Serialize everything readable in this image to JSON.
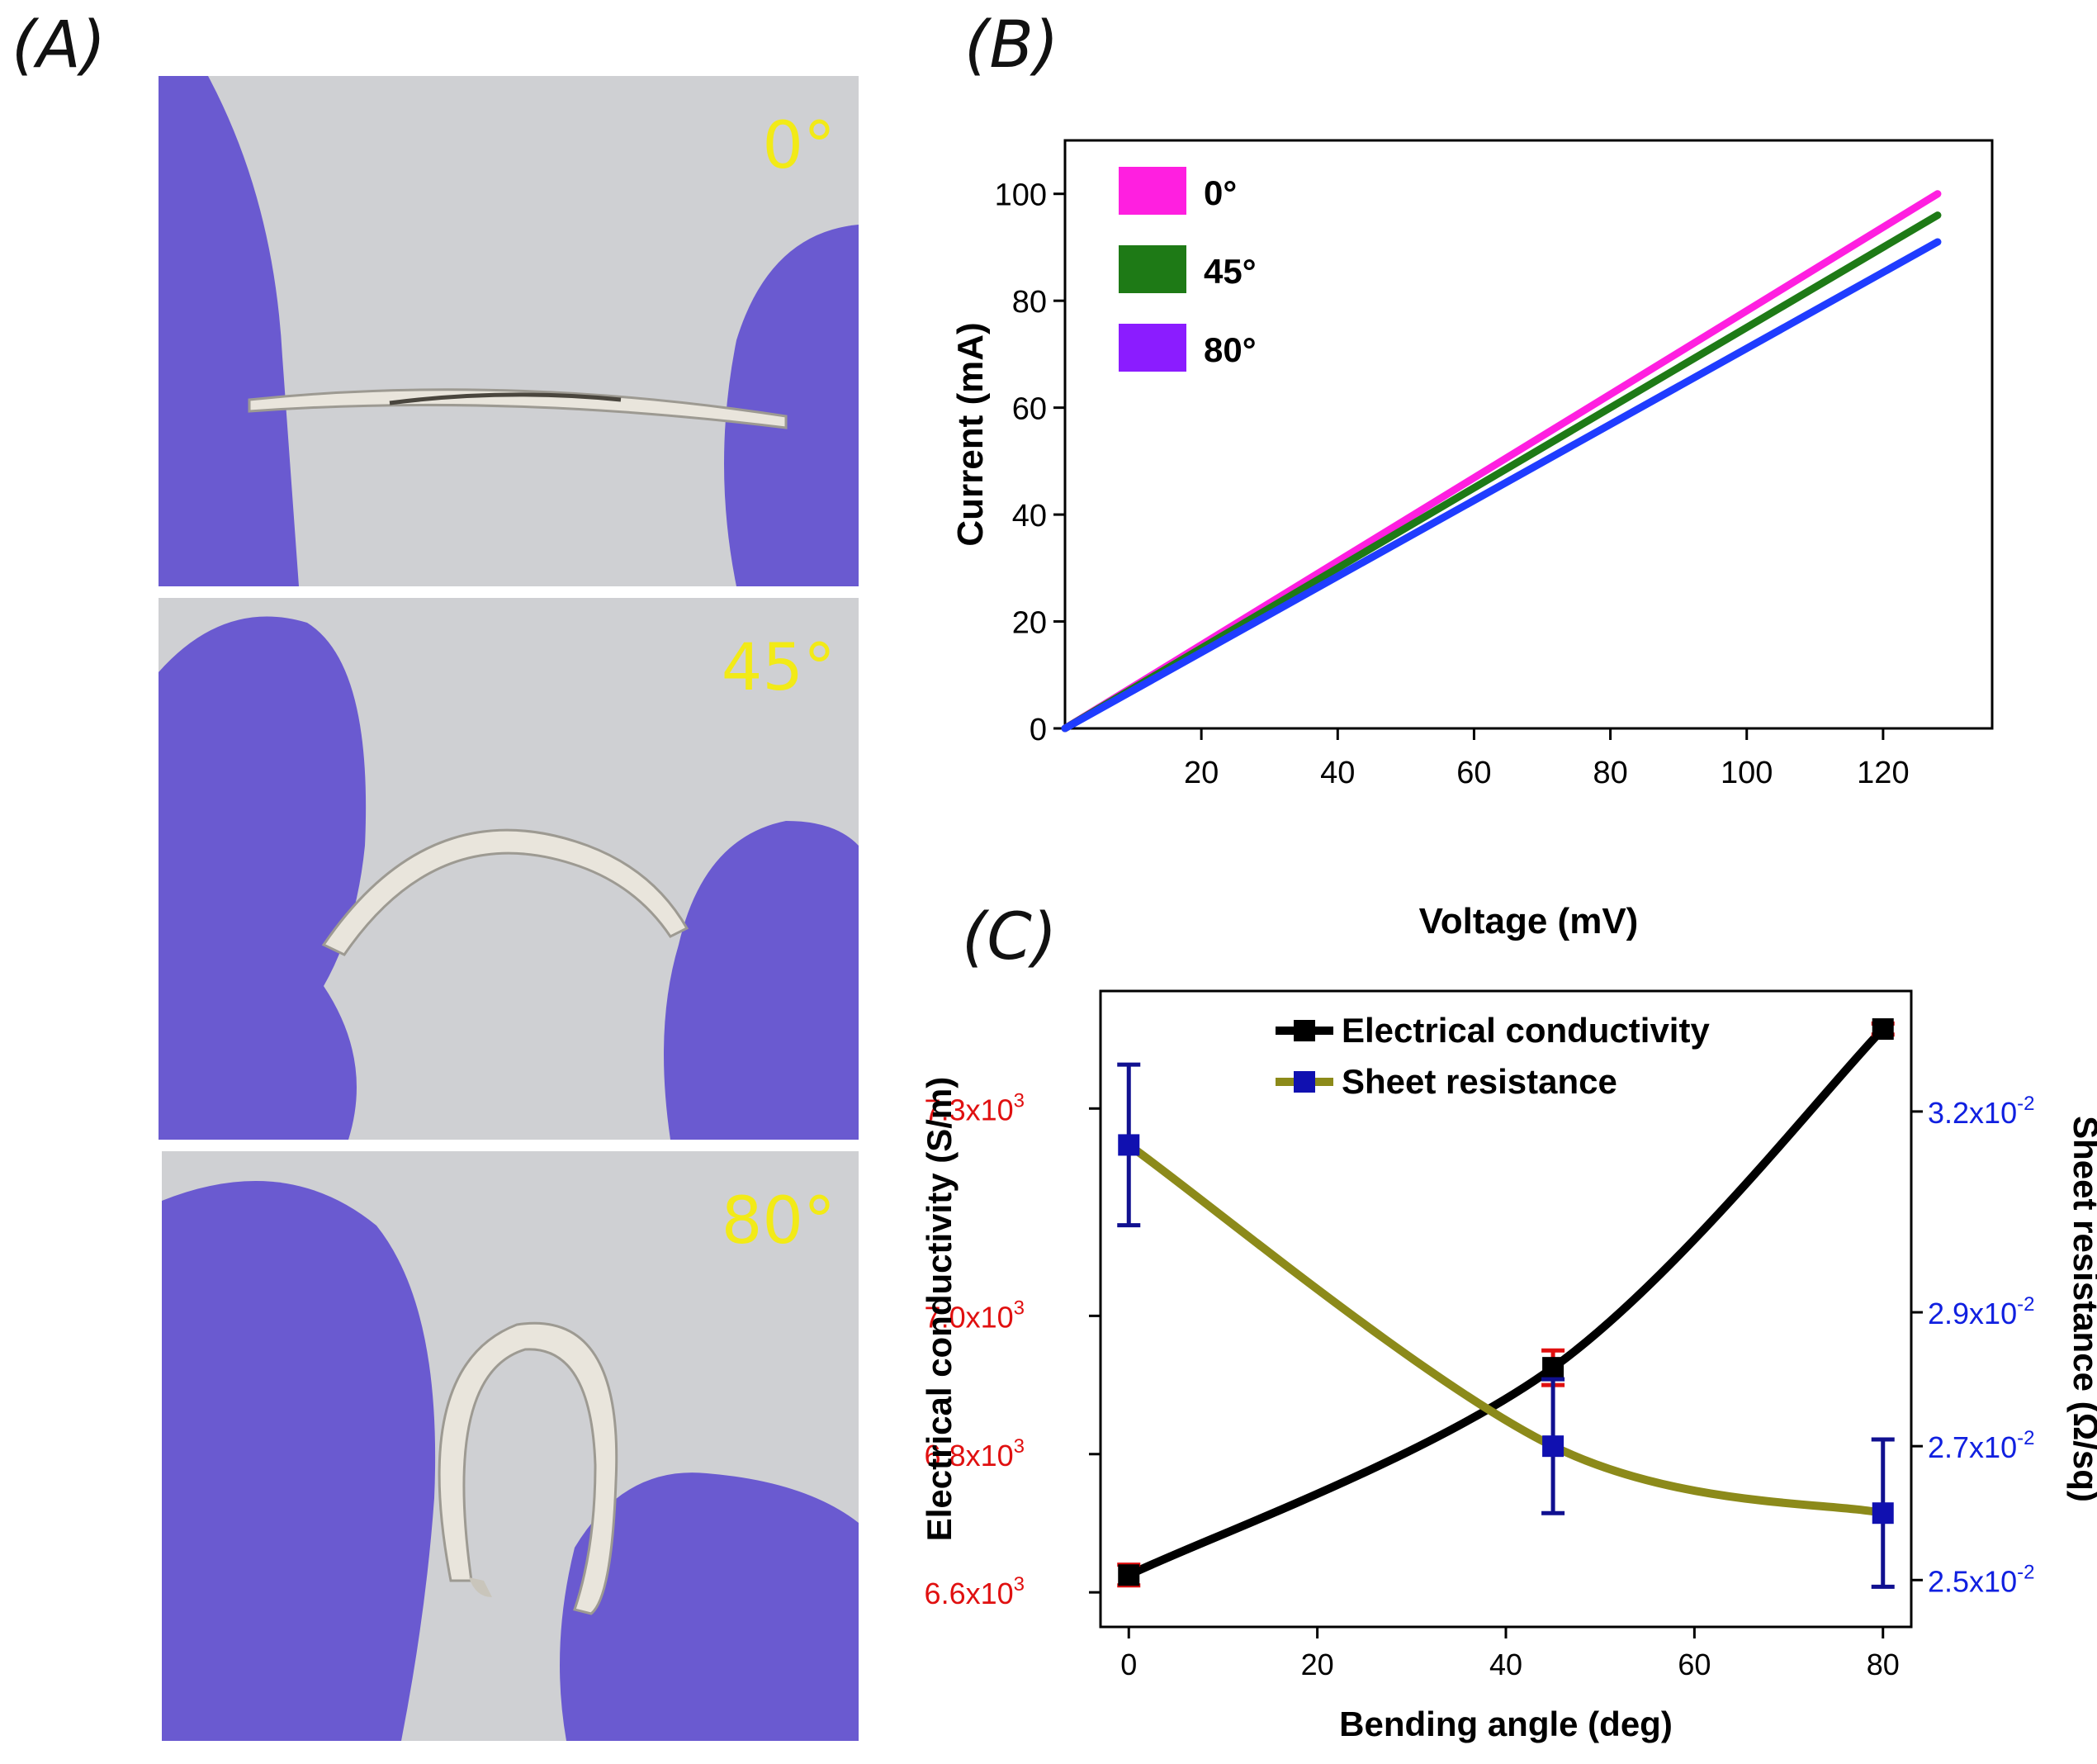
{
  "panels": {
    "a": "(A)",
    "b": "(B)",
    "c": "(C)"
  },
  "photos": [
    {
      "angle_label": "0°"
    },
    {
      "angle_label": "45°"
    },
    {
      "angle_label": "80°"
    }
  ],
  "colors": {
    "glove": "#6a5ad0",
    "background": "#cfd0d3",
    "strip": "#e9e5dc",
    "angle_label": "#f2ea17"
  },
  "chart_data": [
    {
      "id": "B",
      "type": "line",
      "xlabel": "Voltage (mV)",
      "ylabel": "Current (mA)",
      "xlim": [
        0,
        136
      ],
      "ylim": [
        0,
        110
      ],
      "xticks": [
        20,
        40,
        60,
        80,
        100,
        120
      ],
      "yticks": [
        0,
        20,
        40,
        60,
        80,
        100
      ],
      "legend_position": "top-left",
      "series": [
        {
          "name": "0°",
          "color": "#ff1fe0",
          "x": [
            0,
            128
          ],
          "y": [
            0,
            100
          ]
        },
        {
          "name": "45°",
          "color": "#1e7a16",
          "x": [
            0,
            128
          ],
          "y": [
            0,
            96
          ]
        },
        {
          "name": "80°",
          "color": "#1f3cff",
          "x": [
            0,
            128
          ],
          "y": [
            0,
            91
          ]
        }
      ],
      "legend_swatch_colors": [
        "#ff1fe0",
        "#1e7a16",
        "#8b1cff"
      ]
    },
    {
      "id": "C",
      "type": "line",
      "xlabel": "Bending angle (deg)",
      "ylabel_left": "Electrical conductivity (S/m)",
      "ylabel_right": "Sheet resistance (Ω/sq)",
      "xlim": [
        -3,
        83
      ],
      "xticks": [
        0,
        20,
        40,
        60,
        80
      ],
      "ylim_left": [
        6550,
        7470
      ],
      "yticks_left": [
        {
          "value": 6600,
          "mantissa": "6.6x10",
          "exp": "3"
        },
        {
          "value": 6800,
          "mantissa": "6.8x10",
          "exp": "3"
        },
        {
          "value": 7000,
          "mantissa": "7.0x10",
          "exp": "3"
        },
        {
          "value": 7300,
          "mantissa": "7.3x10",
          "exp": "3"
        }
      ],
      "ylim_right": [
        0.0243,
        0.0338
      ],
      "yticks_right": [
        {
          "value": 0.025,
          "mantissa": "2.5x10",
          "exp": "-2"
        },
        {
          "value": 0.027,
          "mantissa": "2.7x10",
          "exp": "-2"
        },
        {
          "value": 0.029,
          "mantissa": "2.9x10",
          "exp": "-2"
        },
        {
          "value": 0.032,
          "mantissa": "3.2x10",
          "exp": "-2"
        }
      ],
      "legend_position": "top-center",
      "series": [
        {
          "name": "Electrical conductivity",
          "axis": "left",
          "line_color": "#000000",
          "marker_color": "#000000",
          "error_color": "#e01010",
          "x": [
            0,
            45,
            80
          ],
          "y": [
            6625,
            6925,
            7415
          ],
          "err": [
            15,
            25,
            8
          ]
        },
        {
          "name": "Sheet resistance",
          "axis": "right",
          "line_color": "#8c8a1a",
          "marker_color": "#1010b0",
          "error_color": "#101090",
          "x": [
            0,
            45,
            80
          ],
          "y": [
            0.0315,
            0.027,
            0.026
          ],
          "err": [
            0.0012,
            0.001,
            0.0011
          ]
        }
      ]
    }
  ]
}
